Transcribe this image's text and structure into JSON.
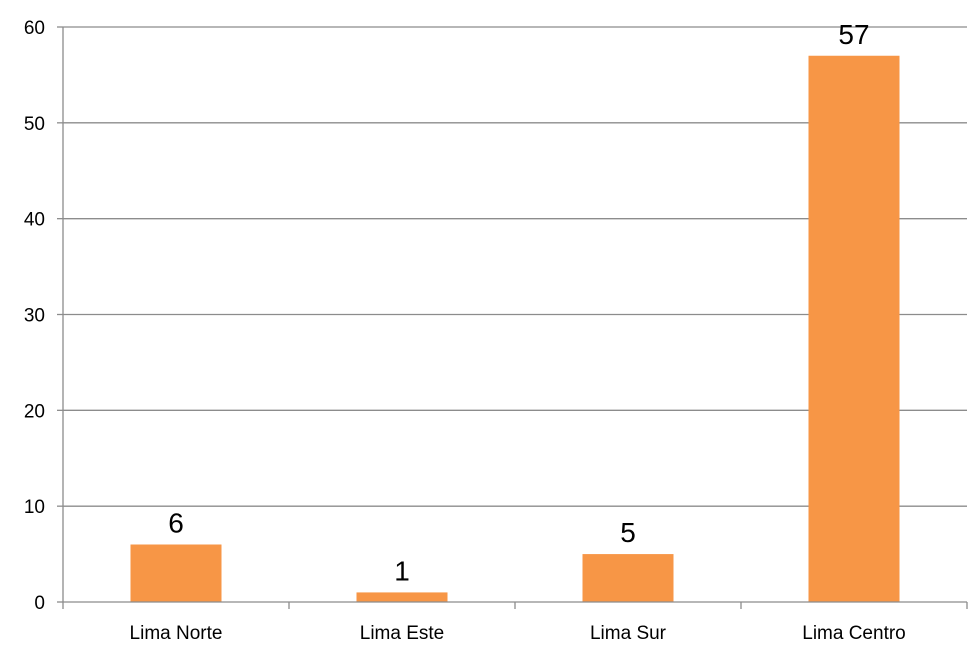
{
  "chart_data": {
    "type": "bar",
    "categories": [
      "Lima Norte",
      "Lima Este",
      "Lima Sur",
      "Lima Centro"
    ],
    "series": [
      {
        "values": [
          6,
          1,
          5,
          57
        ]
      }
    ],
    "data_labels": [
      "6",
      "1",
      "5",
      "57"
    ],
    "title": "",
    "xlabel": "",
    "ylabel": "",
    "ylim": [
      0,
      60
    ],
    "yticks": [
      0,
      10,
      20,
      30,
      40,
      50,
      60
    ],
    "ytick_labels": [
      "0",
      "10",
      "20",
      "30",
      "40",
      "50",
      "60"
    ],
    "grid": true,
    "legend": "none",
    "colors": {
      "bar": "#F79646",
      "grid": "#8C8C8C",
      "axis": "#8C8C8C"
    }
  }
}
